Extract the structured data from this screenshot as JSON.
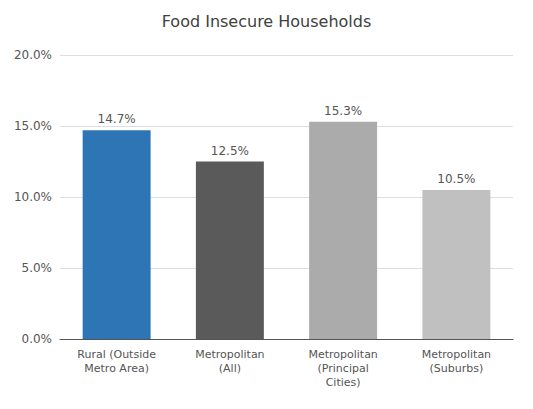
{
  "chart_data": {
    "type": "bar",
    "title": "Food Insecure Households",
    "categories": [
      "Rural (Outside\nMetro Area)",
      "Metropolitan\n(All)",
      "Metropolitan\n(Principal\nCities)",
      "Metropolitan\n(Suburbs)"
    ],
    "values": [
      14.7,
      12.5,
      15.3,
      10.5
    ],
    "value_labels": [
      "14.7%",
      "12.5%",
      "15.3%",
      "10.5%"
    ],
    "colors": [
      "#2E75B6",
      "#5A5A5A",
      "#ABABAB",
      "#C0C0C0"
    ],
    "ylim": [
      0,
      20.0
    ],
    "yticks": [
      {
        "value": 0.0,
        "label": "0.0%"
      },
      {
        "value": 5.0,
        "label": "5.0%"
      },
      {
        "value": 10.0,
        "label": "10.0%"
      },
      {
        "value": 15.0,
        "label": "15.0%"
      },
      {
        "value": 20.0,
        "label": "20.0%"
      }
    ],
    "grid": true
  }
}
